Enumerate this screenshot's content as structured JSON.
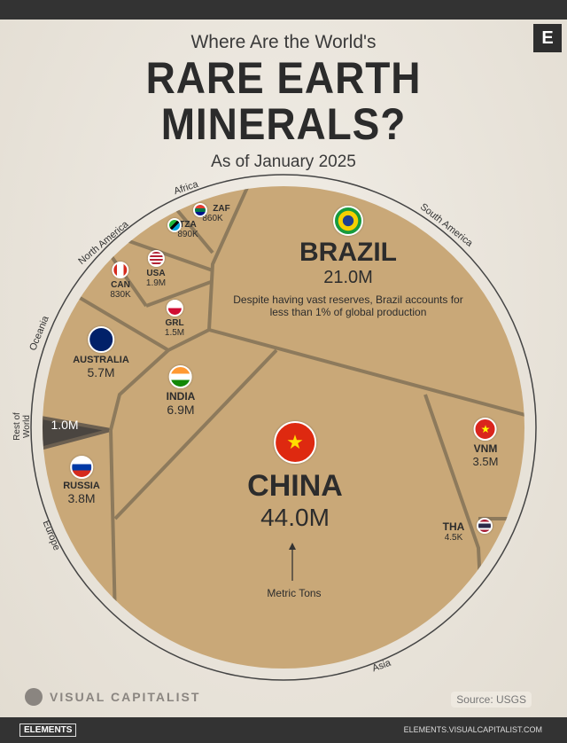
{
  "header": {
    "subtitle_top": "Where Are the World's",
    "title_line1": "RARE EARTH",
    "title_line2": "MINERALS?",
    "date": "As of January 2025",
    "logo": "E"
  },
  "chart_data": {
    "type": "voronoi-treemap",
    "unit_label": "Metric Tons",
    "categories": [
      "China",
      "Brazil",
      "India",
      "Australia",
      "Russia",
      "Vietnam",
      "USA",
      "Greenland",
      "Tanzania",
      "South Africa",
      "Canada",
      "Thailand",
      "Rest of World"
    ],
    "codes": [
      "CHINA",
      "BRAZIL",
      "INDIA",
      "AUSTRALIA",
      "RUSSIA",
      "VNM",
      "USA",
      "GRL",
      "TZA",
      "ZAF",
      "CAN",
      "THA",
      ""
    ],
    "labels": [
      "44.0M",
      "21.0M",
      "6.9M",
      "5.7M",
      "3.8M",
      "3.5M",
      "1.9M",
      "1.5M",
      "890K",
      "860K",
      "830K",
      "4.5K",
      "1.0M"
    ],
    "values": [
      44000000,
      21000000,
      6900000,
      5700000,
      3800000,
      3500000,
      1900000,
      1500000,
      890000,
      860000,
      830000,
      4500,
      1000000
    ],
    "regions": [
      "Africa",
      "South America",
      "North America",
      "Oceania",
      "Rest of World",
      "Europe",
      "Asia"
    ],
    "annotation": "Despite having vast reserves, Brazil accounts for less than 1% of global production"
  },
  "footer": {
    "brand": "VISUAL CAPITALIST",
    "source": "Source: USGS",
    "elements": "ELEMENTS",
    "url": "ELEMENTS.VISUALCAPITALIST.COM"
  }
}
